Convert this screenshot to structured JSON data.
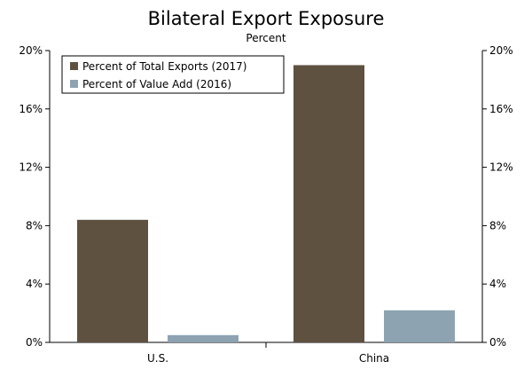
{
  "chart_data": {
    "type": "bar",
    "title": "Bilateral Export Exposure",
    "subtitle": "Percent",
    "categories": [
      "U.S.",
      "China"
    ],
    "series": [
      {
        "name": "Percent of Total Exports (2017)",
        "values": [
          8.4,
          19.0
        ],
        "color": "#5e5140"
      },
      {
        "name": "Percent of Value Add (2016)",
        "values": [
          0.5,
          2.2
        ],
        "color": "#8da3b2"
      }
    ],
    "ylim": [
      0,
      20
    ],
    "yticks": [
      "0%",
      "4%",
      "8%",
      "12%",
      "16%",
      "20%"
    ],
    "right_axis": true,
    "grid": false,
    "legend_position": "top-left"
  }
}
